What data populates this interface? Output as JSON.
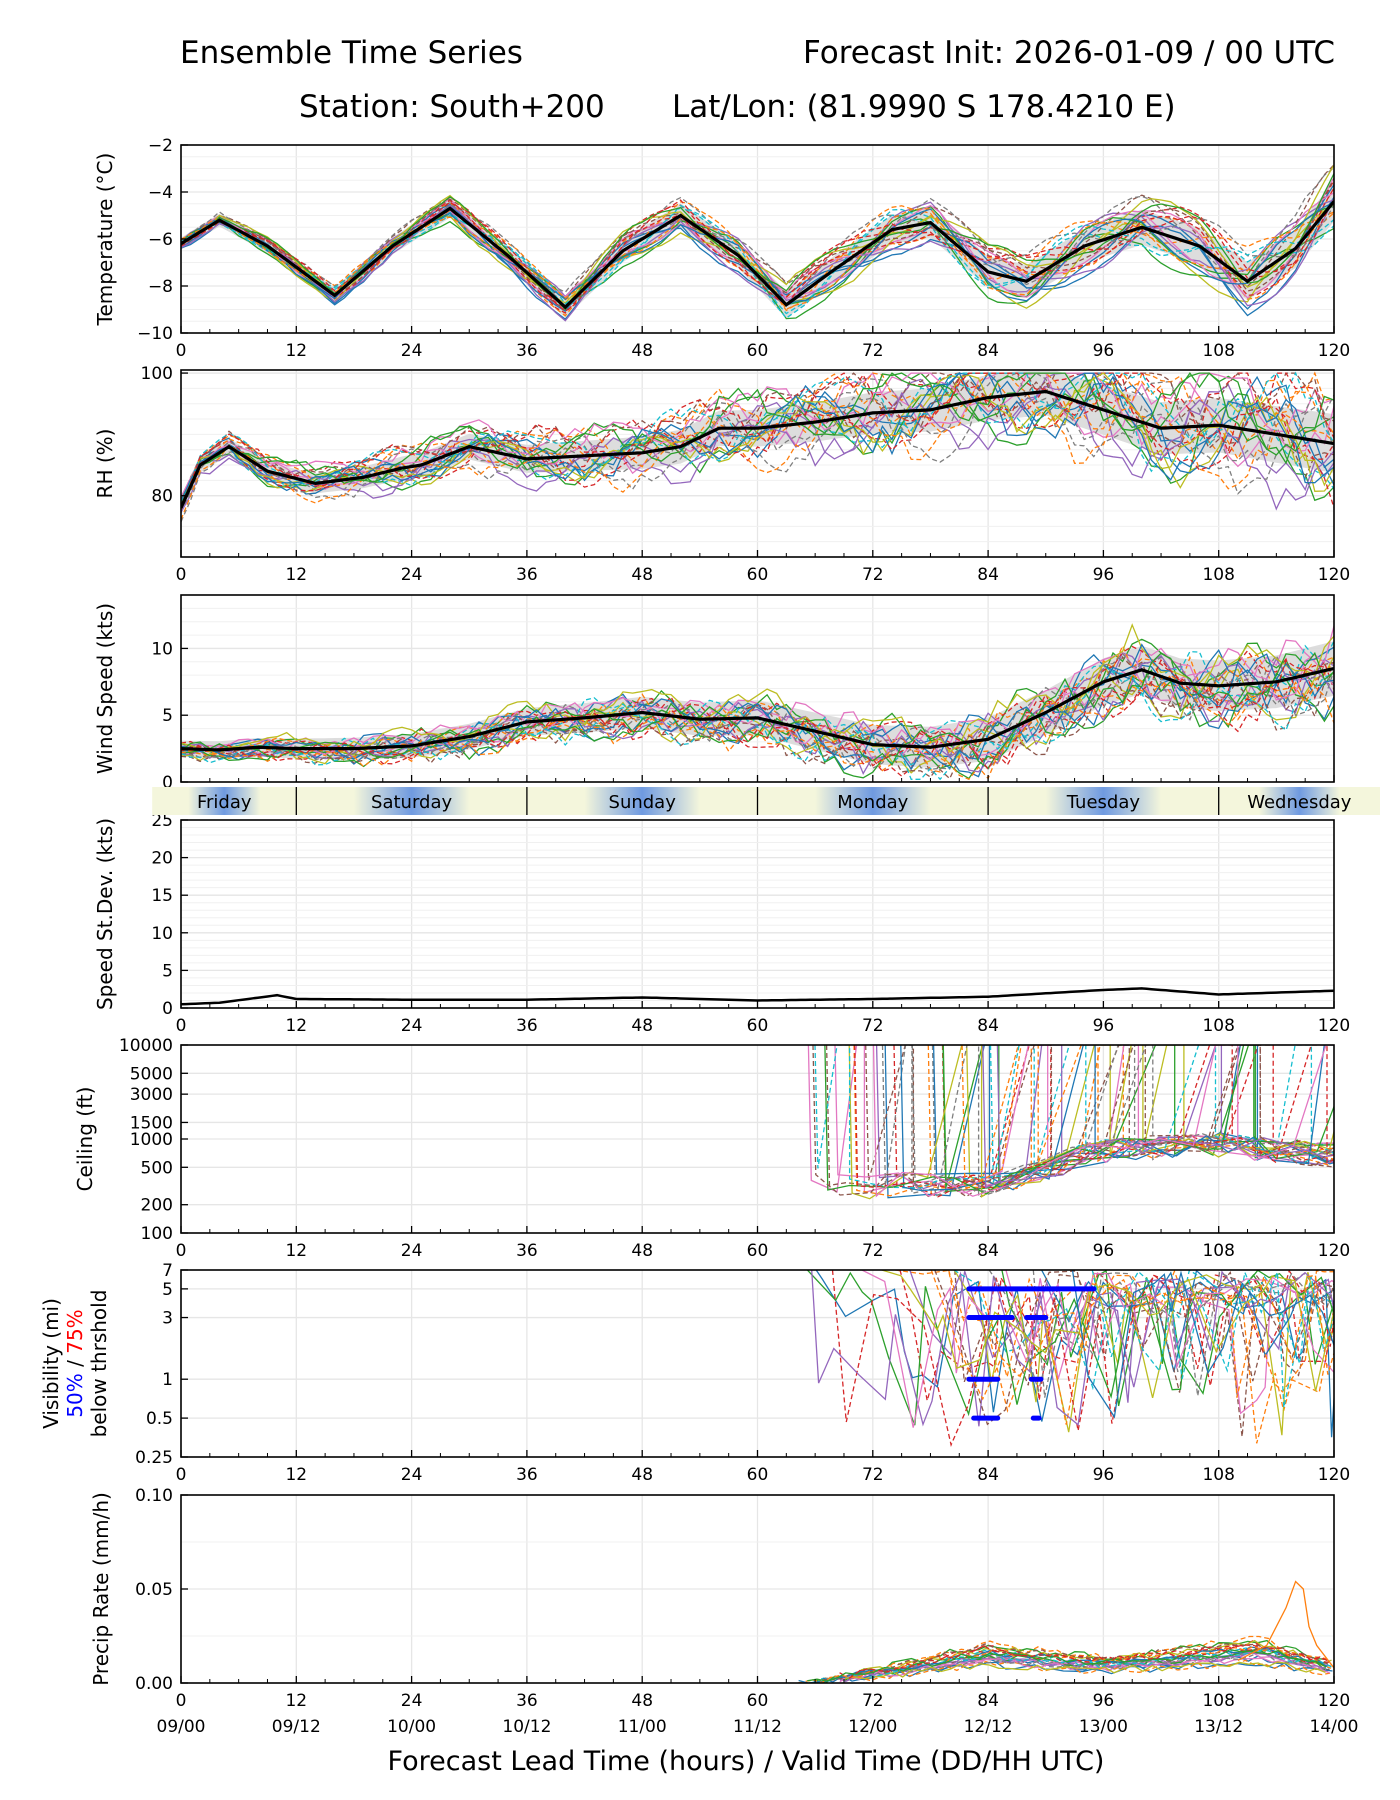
{
  "header": {
    "title_left": "Ensemble Time Series",
    "title_right": "Forecast Init: 2026-01-09 / 00 UTC",
    "station": "Station: South+200",
    "latlon": "Lat/Lon: (81.9990 S 178.4210 E)"
  },
  "x_axis": {
    "label": "Forecast Lead Time (hours) / Valid Time (DD/HH UTC)",
    "range": [
      0,
      120
    ],
    "ticks": [
      0,
      12,
      24,
      36,
      48,
      60,
      72,
      84,
      96,
      108,
      120
    ],
    "valid_labels": [
      "09/00",
      "09/12",
      "10/00",
      "10/12",
      "11/00",
      "11/12",
      "12/00",
      "12/12",
      "13/00",
      "13/12",
      "14/00"
    ]
  },
  "day_band": {
    "days": [
      {
        "name": "Friday",
        "start_hour": -3,
        "end_hour": 12
      },
      {
        "name": "Saturday",
        "start_hour": 12,
        "end_hour": 36
      },
      {
        "name": "Sunday",
        "start_hour": 36,
        "end_hour": 60
      },
      {
        "name": "Monday",
        "start_hour": 60,
        "end_hour": 84
      },
      {
        "name": "Tuesday",
        "start_hour": 84,
        "end_hour": 108
      },
      {
        "name": "Wednesday",
        "start_hour": 108,
        "end_hour": 126
      }
    ],
    "night_color": "#6f9ae0",
    "day_color": "#f4f6dc"
  },
  "colors": {
    "mean_line": "#000000",
    "spread_fill": "#d9d9d9",
    "grid": "#e6e6e6",
    "vis_50": "#0000ff",
    "vis_75": "#ff0000",
    "members": [
      "#1f77b4",
      "#ff7f0e",
      "#2ca02c",
      "#d62728",
      "#9467bd",
      "#8c564b",
      "#e377c2",
      "#7f7f7f",
      "#bcbd22",
      "#17becf"
    ]
  },
  "chart_data": [
    {
      "id": "temperature",
      "type": "line",
      "ylabel": "Temperature (°C)",
      "ylim": [
        -10,
        -2
      ],
      "yticks": [
        -10,
        -8,
        -6,
        -4,
        -2
      ],
      "yticklabels": [
        "−10",
        "−8",
        "−6",
        "−4",
        "−2"
      ],
      "series": [
        {
          "name": "ensemble mean",
          "x": [
            0,
            4,
            9,
            16,
            22,
            28,
            34,
            40,
            46,
            52,
            58,
            63,
            68,
            74,
            78,
            84,
            88,
            94,
            100,
            106,
            111,
            116,
            120
          ],
          "values": [
            -6.2,
            -5.2,
            -6.3,
            -8.4,
            -6.3,
            -4.7,
            -6.7,
            -8.9,
            -6.5,
            -5.0,
            -6.7,
            -8.8,
            -7.3,
            -5.6,
            -5.3,
            -7.4,
            -7.8,
            -6.3,
            -5.5,
            -6.3,
            -7.8,
            -6.4,
            -4.4
          ]
        }
      ]
    },
    {
      "id": "rh",
      "type": "line",
      "ylabel": "RH (%)",
      "ylim": [
        70,
        100.5
      ],
      "yticks": [
        80,
        100
      ],
      "yticklabels": [
        "80",
        "100"
      ],
      "series": [
        {
          "name": "ensemble mean",
          "x": [
            0,
            2,
            5,
            9,
            14,
            19,
            23,
            25,
            30,
            36,
            42,
            48,
            52,
            56,
            60,
            66,
            72,
            78,
            84,
            90,
            96,
            102,
            108,
            114,
            120
          ],
          "values": [
            78,
            85,
            88,
            84,
            82,
            83,
            84.5,
            85,
            88,
            86,
            86.5,
            87,
            88,
            91,
            91,
            92,
            93.5,
            94,
            96,
            97,
            94,
            91,
            91.5,
            90,
            88.5
          ]
        }
      ]
    },
    {
      "id": "wind_speed",
      "type": "line",
      "ylabel": "Wind Speed (kts)",
      "ylim": [
        0,
        14
      ],
      "yticks": [
        0,
        5,
        10
      ],
      "yticklabels": [
        "0",
        "5",
        "10"
      ],
      "series": [
        {
          "name": "ensemble mean",
          "x": [
            0,
            4,
            8,
            12,
            18,
            24,
            30,
            36,
            42,
            48,
            54,
            60,
            66,
            72,
            78,
            84,
            90,
            96,
            100,
            104,
            108,
            114,
            120
          ],
          "values": [
            2.5,
            2.4,
            2.6,
            2.5,
            2.5,
            2.7,
            3.4,
            4.5,
            4.8,
            5.2,
            4.7,
            4.8,
            3.8,
            2.8,
            2.6,
            3.2,
            5.2,
            7.5,
            8.4,
            7.4,
            7.2,
            7.5,
            8.5
          ]
        }
      ]
    },
    {
      "id": "speed_stdev",
      "type": "line",
      "ylabel": "Speed St.Dev. (kts)",
      "ylim": [
        0,
        25
      ],
      "yticks": [
        0,
        5,
        10,
        15,
        20,
        25
      ],
      "yticklabels": [
        "0",
        "5",
        "10",
        "15",
        "20",
        "25"
      ],
      "series": [
        {
          "name": "ensemble stdev",
          "x": [
            0,
            4,
            10,
            12,
            24,
            36,
            48,
            60,
            72,
            84,
            96,
            100,
            108,
            120
          ],
          "values": [
            0.5,
            0.7,
            1.7,
            1.2,
            1.1,
            1.1,
            1.4,
            1.0,
            1.2,
            1.5,
            2.4,
            2.6,
            1.8,
            2.3
          ]
        }
      ]
    },
    {
      "id": "ceiling",
      "type": "line",
      "ylabel": "Ceiling (ft)",
      "yscale": "log",
      "ylim": [
        100,
        10000
      ],
      "yticks": [
        100,
        200,
        500,
        1000,
        1500,
        3000,
        5000,
        10000
      ],
      "yticklabels": [
        "100",
        "200",
        "500",
        "1000",
        "1500",
        "3000",
        "5000",
        "10000"
      ],
      "series": [
        {
          "name": "typical member base",
          "x": [
            65,
            70,
            76,
            84,
            90,
            96,
            108,
            120
          ],
          "values": [
            450,
            300,
            350,
            330,
            500,
            800,
            900,
            700
          ]
        }
      ]
    },
    {
      "id": "visibility",
      "type": "line",
      "ylabel": "Visibility (mi)",
      "ylabel_50": "50%",
      "ylabel_sep": " / ",
      "ylabel_75": "75%",
      "ylabel_sub": "below thrshold",
      "yscale": "log",
      "ylim": [
        0.25,
        7
      ],
      "yticks": [
        0.25,
        0.5,
        1,
        3,
        5,
        7
      ],
      "yticklabels": [
        "0.25",
        "0.5",
        "1",
        "3",
        "5",
        "7"
      ],
      "threshold_bars_50": [
        {
          "threshold": 5,
          "start": 82,
          "end": 95
        },
        {
          "threshold": 3,
          "start": 82,
          "end": 86.5
        },
        {
          "threshold": 3,
          "start": 88,
          "end": 90
        },
        {
          "threshold": 1,
          "start": 82,
          "end": 85
        },
        {
          "threshold": 1,
          "start": 88.5,
          "end": 89.5
        },
        {
          "threshold": 0.5,
          "start": 82.5,
          "end": 85
        },
        {
          "threshold": 0.5,
          "start": 88.7,
          "end": 89.3
        }
      ]
    },
    {
      "id": "precip",
      "type": "line",
      "ylabel": "Precip Rate (mm/h)",
      "ylim": [
        0,
        0.1
      ],
      "yticks": [
        0,
        0.05,
        0.1
      ],
      "yticklabels": [
        "0.00",
        "0.05",
        "0.10"
      ],
      "series": [
        {
          "name": "typical member",
          "x": [
            64,
            72,
            78,
            84,
            90,
            96,
            104,
            112,
            120
          ],
          "values": [
            0,
            0.005,
            0.01,
            0.015,
            0.012,
            0.01,
            0.013,
            0.017,
            0.008
          ]
        }
      ]
    }
  ]
}
